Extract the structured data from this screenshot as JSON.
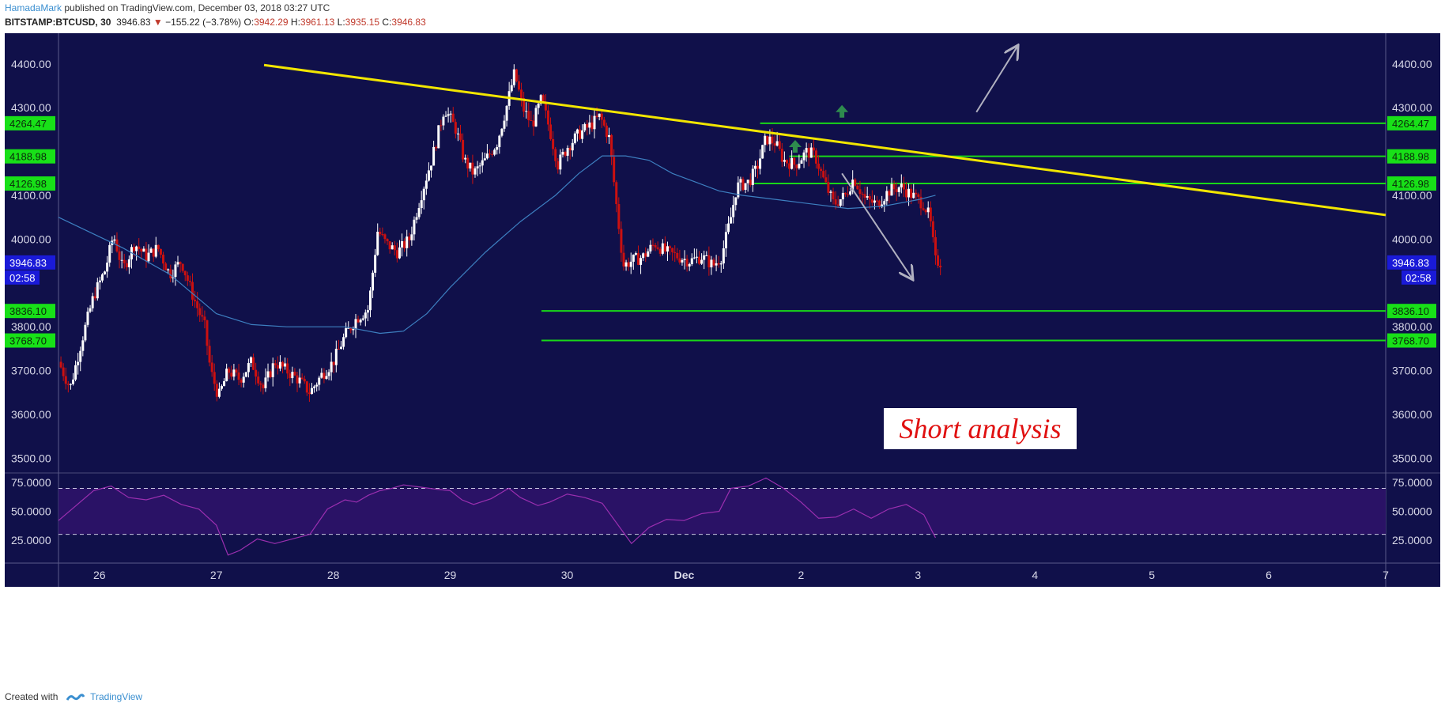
{
  "header": {
    "author": "HamadaMark",
    "published": "published on TradingView.com, December 03, 2018 03:27 UTC",
    "symbol": "BITSTAMP:BTCUSD, 30",
    "last": "3946.83",
    "change_arrow": "▼",
    "change": "−155.22 (−3.78%)",
    "o_label": "O:",
    "o": "3942.29",
    "h_label": "H:",
    "h": "3961.13",
    "l_label": "L:",
    "l": "3935.15",
    "c_label": "C:",
    "c": "3946.83"
  },
  "footer": {
    "created_with": "Created with",
    "brand": "TradingView"
  },
  "colors": {
    "background": "#10104a",
    "up_candle": "#ffffff",
    "down_candle": "#cc1010",
    "trendline": "#f2e600",
    "level_line": "#18d818",
    "level_label_bg": "#18e018",
    "ma_line": "#3d7fc0",
    "rsi_line": "#9b2fb0",
    "rsi_band": "#2a1266",
    "price_label_bg": "#1a1ad8"
  },
  "annotation": {
    "text": "Short analysis"
  },
  "chart_data": {
    "type": "candlestick",
    "symbol": "BITSTAMP:BTCUSD",
    "interval": "30",
    "x_ticks": [
      {
        "label": "26",
        "day": 0
      },
      {
        "label": "27",
        "day": 1
      },
      {
        "label": "28",
        "day": 2
      },
      {
        "label": "29",
        "day": 3
      },
      {
        "label": "30",
        "day": 4
      },
      {
        "label": "Dec",
        "day": 5
      },
      {
        "label": "2",
        "day": 6
      },
      {
        "label": "3",
        "day": 7
      },
      {
        "label": "4",
        "day": 8
      },
      {
        "label": "5",
        "day": 9
      },
      {
        "label": "6",
        "day": 10
      },
      {
        "label": "7",
        "day": 11
      }
    ],
    "x_range_days": [
      -0.35,
      11.0
    ],
    "y_ticks": [
      "4400.00",
      "4300.00",
      "4100.00",
      "4000.00",
      "3800.00",
      "3700.00",
      "3600.00",
      "3500.00"
    ],
    "ylim": [
      3470,
      4470
    ],
    "current_price": {
      "value": 3946.83,
      "label": "3946.83",
      "countdown": "02:58"
    },
    "price_path": [
      [
        -0.35,
        3720
      ],
      [
        -0.25,
        3660
      ],
      [
        -0.15,
        3770
      ],
      [
        -0.05,
        3870
      ],
      [
        0.05,
        3930
      ],
      [
        0.12,
        4010
      ],
      [
        0.2,
        3930
      ],
      [
        0.3,
        3990
      ],
      [
        0.4,
        3960
      ],
      [
        0.5,
        3980
      ],
      [
        0.6,
        3920
      ],
      [
        0.7,
        3950
      ],
      [
        0.8,
        3870
      ],
      [
        0.9,
        3800
      ],
      [
        0.95,
        3700
      ],
      [
        1.02,
        3640
      ],
      [
        1.1,
        3700
      ],
      [
        1.2,
        3680
      ],
      [
        1.3,
        3720
      ],
      [
        1.4,
        3660
      ],
      [
        1.5,
        3720
      ],
      [
        1.6,
        3700
      ],
      [
        1.7,
        3680
      ],
      [
        1.8,
        3650
      ],
      [
        1.9,
        3690
      ],
      [
        2.0,
        3720
      ],
      [
        2.1,
        3780
      ],
      [
        2.2,
        3820
      ],
      [
        2.3,
        3840
      ],
      [
        2.38,
        4020
      ],
      [
        2.45,
        3990
      ],
      [
        2.55,
        3970
      ],
      [
        2.65,
        4000
      ],
      [
        2.75,
        4100
      ],
      [
        2.85,
        4190
      ],
      [
        2.95,
        4300
      ],
      [
        3.05,
        4250
      ],
      [
        3.12,
        4180
      ],
      [
        3.2,
        4150
      ],
      [
        3.3,
        4180
      ],
      [
        3.4,
        4220
      ],
      [
        3.48,
        4300
      ],
      [
        3.55,
        4380
      ],
      [
        3.62,
        4300
      ],
      [
        3.7,
        4260
      ],
      [
        3.78,
        4320
      ],
      [
        3.85,
        4250
      ],
      [
        3.92,
        4170
      ],
      [
        4.0,
        4210
      ],
      [
        4.1,
        4240
      ],
      [
        4.2,
        4260
      ],
      [
        4.28,
        4280
      ],
      [
        4.36,
        4230
      ],
      [
        4.42,
        4080
      ],
      [
        4.48,
        3940
      ],
      [
        4.55,
        3950
      ],
      [
        4.65,
        3960
      ],
      [
        4.75,
        3990
      ],
      [
        4.85,
        3970
      ],
      [
        4.95,
        3960
      ],
      [
        5.05,
        3950
      ],
      [
        5.15,
        3960
      ],
      [
        5.25,
        3940
      ],
      [
        5.32,
        3960
      ],
      [
        5.4,
        4050
      ],
      [
        5.45,
        4120
      ],
      [
        5.55,
        4130
      ],
      [
        5.62,
        4160
      ],
      [
        5.7,
        4230
      ],
      [
        5.78,
        4220
      ],
      [
        5.85,
        4180
      ],
      [
        5.95,
        4170
      ],
      [
        6.05,
        4200
      ],
      [
        6.12,
        4190
      ],
      [
        6.2,
        4130
      ],
      [
        6.28,
        4080
      ],
      [
        6.38,
        4100
      ],
      [
        6.45,
        4140
      ],
      [
        6.55,
        4090
      ],
      [
        6.65,
        4080
      ],
      [
        6.75,
        4110
      ],
      [
        6.85,
        4120
      ],
      [
        6.95,
        4100
      ],
      [
        7.05,
        4080
      ],
      [
        7.1,
        4050
      ],
      [
        7.15,
        3950
      ],
      [
        7.2,
        3946.83
      ]
    ],
    "moving_average": [
      [
        -0.35,
        4050
      ],
      [
        0.2,
        3980
      ],
      [
        0.6,
        3920
      ],
      [
        1.0,
        3830
      ],
      [
        1.3,
        3805
      ],
      [
        1.6,
        3800
      ],
      [
        1.9,
        3800
      ],
      [
        2.1,
        3800
      ],
      [
        2.4,
        3785
      ],
      [
        2.6,
        3790
      ],
      [
        2.8,
        3830
      ],
      [
        3.0,
        3890
      ],
      [
        3.3,
        3970
      ],
      [
        3.6,
        4040
      ],
      [
        3.9,
        4100
      ],
      [
        4.1,
        4150
      ],
      [
        4.3,
        4190
      ],
      [
        4.5,
        4190
      ],
      [
        4.7,
        4180
      ],
      [
        4.9,
        4150
      ],
      [
        5.1,
        4130
      ],
      [
        5.3,
        4110
      ],
      [
        5.5,
        4100
      ],
      [
        5.8,
        4090
      ],
      [
        6.1,
        4080
      ],
      [
        6.4,
        4070
      ],
      [
        6.7,
        4075
      ],
      [
        7.0,
        4090
      ],
      [
        7.15,
        4100
      ]
    ],
    "trendline": [
      [
        -0.35,
        4460
      ],
      [
        11.0,
        4055
      ]
    ],
    "levels": [
      {
        "value": 4264.47,
        "label": "4264.47",
        "from_day": 5.65
      },
      {
        "value": 4188.98,
        "label": "4188.98",
        "from_day": 5.9
      },
      {
        "value": 4126.98,
        "label": "4126.98",
        "from_day": 5.6
      },
      {
        "value": 3836.1,
        "label": "3836.10",
        "from_day": 3.78
      },
      {
        "value": 3768.7,
        "label": "3768.70",
        "from_day": 3.78
      }
    ],
    "arrows": [
      {
        "from": [
          7.5,
          4290
        ],
        "to": [
          7.85,
          4440
        ],
        "kind": "line"
      },
      {
        "from": [
          6.35,
          4150
        ],
        "to": [
          6.95,
          3910
        ],
        "kind": "line"
      },
      {
        "at": [
          5.95,
          4210
        ],
        "kind": "up"
      },
      {
        "at": [
          6.35,
          4290
        ],
        "kind": "up"
      }
    ],
    "rsi": {
      "ticks": [
        "75.0000",
        "50.0000",
        "25.0000"
      ],
      "ylim": [
        5,
        82
      ],
      "upper_band": 70,
      "lower_band": 30,
      "values": [
        [
          -0.35,
          42
        ],
        [
          -0.2,
          55
        ],
        [
          -0.05,
          68
        ],
        [
          0.1,
          72
        ],
        [
          0.25,
          62
        ],
        [
          0.4,
          60
        ],
        [
          0.55,
          64
        ],
        [
          0.7,
          56
        ],
        [
          0.85,
          52
        ],
        [
          1.0,
          38
        ],
        [
          1.1,
          12
        ],
        [
          1.2,
          16
        ],
        [
          1.35,
          26
        ],
        [
          1.5,
          22
        ],
        [
          1.65,
          26
        ],
        [
          1.8,
          30
        ],
        [
          1.95,
          52
        ],
        [
          2.1,
          60
        ],
        [
          2.2,
          58
        ],
        [
          2.3,
          64
        ],
        [
          2.4,
          68
        ],
        [
          2.5,
          70
        ],
        [
          2.6,
          73
        ],
        [
          2.75,
          71
        ],
        [
          2.9,
          69
        ],
        [
          3.0,
          68
        ],
        [
          3.1,
          60
        ],
        [
          3.2,
          56
        ],
        [
          3.35,
          61
        ],
        [
          3.5,
          70
        ],
        [
          3.6,
          62
        ],
        [
          3.75,
          55
        ],
        [
          3.85,
          58
        ],
        [
          4.0,
          65
        ],
        [
          4.15,
          62
        ],
        [
          4.3,
          57
        ],
        [
          4.45,
          36
        ],
        [
          4.55,
          22
        ],
        [
          4.7,
          36
        ],
        [
          4.85,
          43
        ],
        [
          5.0,
          42
        ],
        [
          5.15,
          48
        ],
        [
          5.3,
          50
        ],
        [
          5.4,
          70
        ],
        [
          5.55,
          72
        ],
        [
          5.7,
          79
        ],
        [
          5.85,
          70
        ],
        [
          6.0,
          58
        ],
        [
          6.15,
          44
        ],
        [
          6.3,
          45
        ],
        [
          6.45,
          52
        ],
        [
          6.6,
          44
        ],
        [
          6.75,
          52
        ],
        [
          6.9,
          56
        ],
        [
          7.05,
          47
        ],
        [
          7.15,
          27
        ]
      ]
    }
  }
}
